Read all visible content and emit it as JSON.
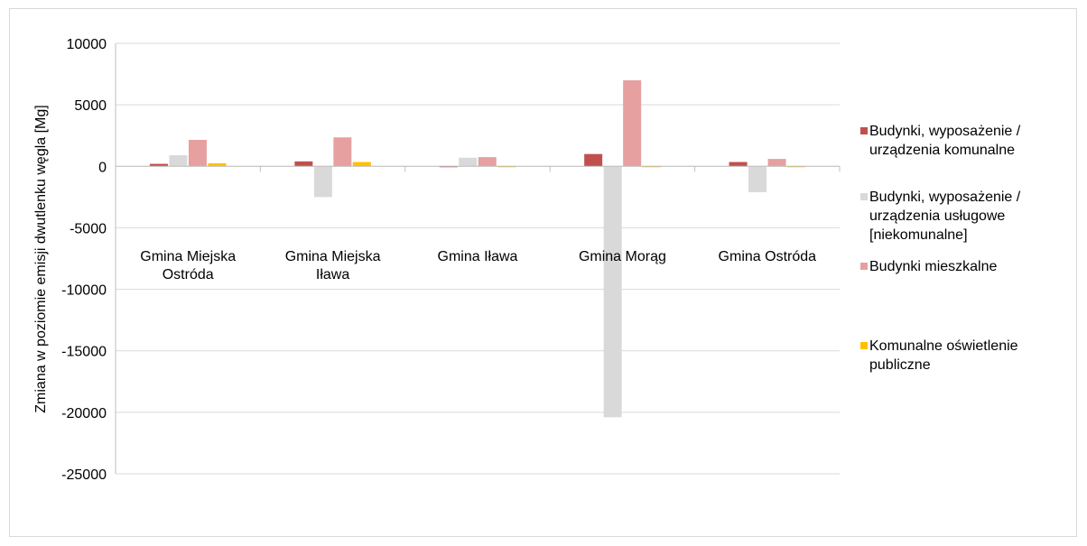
{
  "chart_data": {
    "type": "bar",
    "title": "",
    "xlabel": "",
    "ylabel": "Zmiana w  poziomie emisji dwutlenku węgla  [Mg]",
    "ylim": [
      -25000,
      10000
    ],
    "yticks": [
      10000,
      5000,
      0,
      -5000,
      -10000,
      -15000,
      -20000,
      -25000
    ],
    "categories": [
      "Gmina Miejska Ostróda",
      "Gmina Miejska Iława",
      "Gmina Iława",
      "Gmina Morąg",
      "Gmina Ostróda"
    ],
    "category_lines": [
      [
        "Gmina Miejska",
        "Ostróda"
      ],
      [
        "Gmina Miejska",
        "Iława"
      ],
      [
        "Gmina Iława"
      ],
      [
        "Gmina Morąg"
      ],
      [
        "Gmina Ostróda"
      ]
    ],
    "series": [
      {
        "name": "Budynki, wyposażenie / urządzenia komunalne",
        "legend_lines": [
          "Budynki, wyposażenie /",
          "urządzenia komunalne"
        ],
        "color": "#c0504d",
        "values": [
          200,
          400,
          -50,
          1000,
          350
        ]
      },
      {
        "name": "Budynki, wyposażenie / urządzenia usługowe [niekomunalne]",
        "legend_lines": [
          "Budynki, wyposażenie /",
          "urządzenia usługowe",
          "[niekomunalne]"
        ],
        "color": "#d9d9d9",
        "values": [
          900,
          -2500,
          700,
          -20400,
          -2100
        ]
      },
      {
        "name": "Budynki mieszkalne",
        "legend_lines": [
          "Budynki mieszkalne"
        ],
        "color": "#e6a0a0",
        "values": [
          2150,
          2350,
          750,
          7000,
          600
        ]
      },
      {
        "name": "Komunalne oświetlenie publiczne",
        "legend_lines": [
          "Komunalne oświetlenie",
          "publiczne"
        ],
        "color": "#ffc000",
        "values": [
          250,
          350,
          -50,
          -50,
          -50
        ]
      }
    ],
    "grid": true,
    "legend_position": "right"
  }
}
